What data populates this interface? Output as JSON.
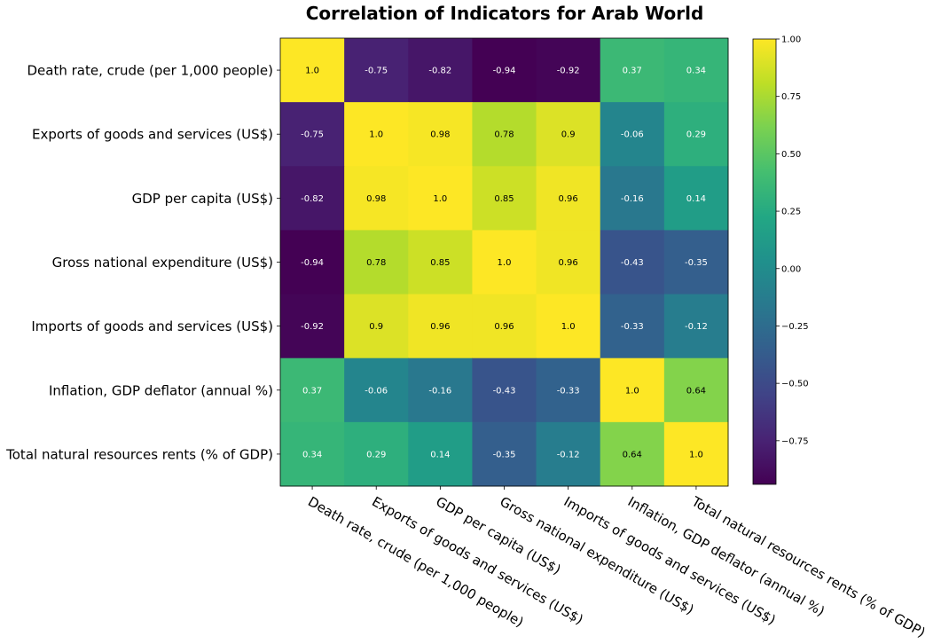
{
  "chart_data": {
    "type": "heatmap",
    "title": "Correlation of Indicators for Arab World",
    "rows": [
      "Death rate, crude (per 1,000 people)",
      "Exports of goods and services (US$)",
      "GDP per capita (US$)",
      "Gross national expenditure (US$)",
      "Imports of goods and services (US$)",
      "Inflation, GDP deflator (annual %)",
      "Total natural resources rents (% of GDP)"
    ],
    "columns": [
      "Death rate, crude (per 1,000 people)",
      "Exports of goods and services (US$)",
      "GDP per capita (US$)",
      "Gross national expenditure (US$)",
      "Imports of goods and services (US$)",
      "Inflation, GDP deflator (annual %)",
      "Total natural resources rents (% of GDP)"
    ],
    "values": [
      [
        1.0,
        -0.75,
        -0.82,
        -0.94,
        -0.92,
        0.37,
        0.34
      ],
      [
        -0.75,
        1.0,
        0.98,
        0.78,
        0.9,
        -0.06,
        0.29
      ],
      [
        -0.82,
        0.98,
        1.0,
        0.85,
        0.96,
        -0.16,
        0.14
      ],
      [
        -0.94,
        0.78,
        0.85,
        1.0,
        0.96,
        -0.43,
        -0.35
      ],
      [
        -0.92,
        0.9,
        0.96,
        0.96,
        1.0,
        -0.33,
        -0.12
      ],
      [
        0.37,
        -0.06,
        -0.16,
        -0.43,
        -0.33,
        1.0,
        0.64
      ],
      [
        0.34,
        0.29,
        0.14,
        -0.35,
        -0.12,
        0.64,
        1.0
      ]
    ],
    "cell_labels": [
      [
        "1.0",
        "-0.75",
        "-0.82",
        "-0.94",
        "-0.92",
        "0.37",
        "0.34"
      ],
      [
        "-0.75",
        "1.0",
        "0.98",
        "0.78",
        "0.9",
        "-0.06",
        "0.29"
      ],
      [
        "-0.82",
        "0.98",
        "1.0",
        "0.85",
        "0.96",
        "-0.16",
        "0.14"
      ],
      [
        "-0.94",
        "0.78",
        "0.85",
        "1.0",
        "0.96",
        "-0.43",
        "-0.35"
      ],
      [
        "-0.92",
        "0.9",
        "0.96",
        "0.96",
        "1.0",
        "-0.33",
        "-0.12"
      ],
      [
        "0.37",
        "-0.06",
        "-0.16",
        "-0.43",
        "-0.33",
        "1.0",
        "0.64"
      ],
      [
        "0.34",
        "0.29",
        "0.14",
        "-0.35",
        "-0.12",
        "0.64",
        "1.0"
      ]
    ],
    "colorbar": {
      "colormap": "viridis",
      "vmin": -0.94,
      "vmax": 1.0,
      "ticks": [
        1.0,
        0.75,
        0.5,
        0.25,
        0.0,
        -0.25,
        -0.5,
        -0.75
      ],
      "tick_labels": [
        "1.00",
        "0.75",
        "0.50",
        "0.25",
        "0.00",
        "−0.25",
        "−0.50",
        "−0.75"
      ]
    },
    "legend": "colorbar right",
    "grid": false
  }
}
